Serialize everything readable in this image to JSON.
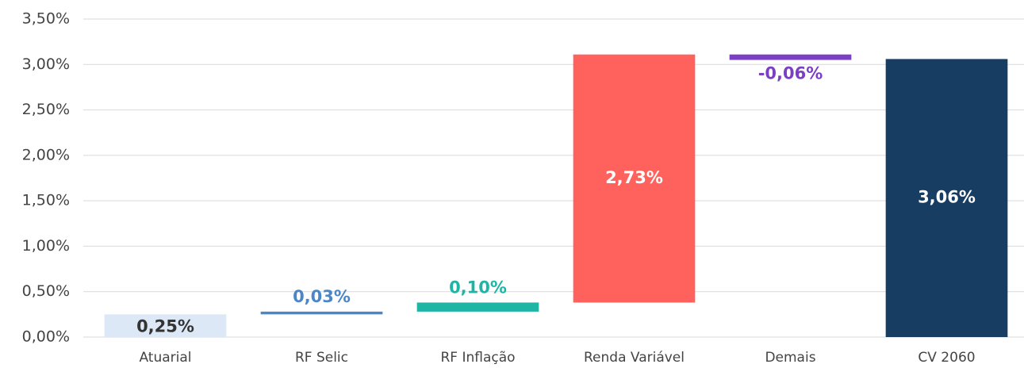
{
  "chart_data": {
    "type": "waterfall",
    "categories": [
      "Atuarial",
      "RF Selic",
      "RF Inflação",
      "Renda Variável",
      "Demais",
      "CV 2060"
    ],
    "values": [
      0.25,
      0.03,
      0.1,
      2.73,
      -0.06,
      3.06
    ],
    "value_labels": [
      "0,25%",
      "0,03%",
      "0,10%",
      "2,73%",
      "-0,06%",
      "3,06%"
    ],
    "is_total": [
      false,
      false,
      false,
      false,
      false,
      true
    ],
    "colors": [
      "#dce8f5",
      "#4a86c8",
      "#1fb5a5",
      "#ff625c",
      "#7b3fc4",
      "#173d63"
    ],
    "ylim": [
      0,
      3.5
    ],
    "yticks": [
      {
        "value": 0,
        "label": "0,00%"
      },
      {
        "value": 0.5,
        "label": "0,50%"
      },
      {
        "value": 1,
        "label": "1,00%"
      },
      {
        "value": 1.5,
        "label": "1,50%"
      },
      {
        "value": 2,
        "label": "2,00%"
      },
      {
        "value": 2.5,
        "label": "2,50%"
      },
      {
        "value": 3,
        "label": "3,00%"
      },
      {
        "value": 3.5,
        "label": "3,50%"
      }
    ],
    "grid": true
  }
}
